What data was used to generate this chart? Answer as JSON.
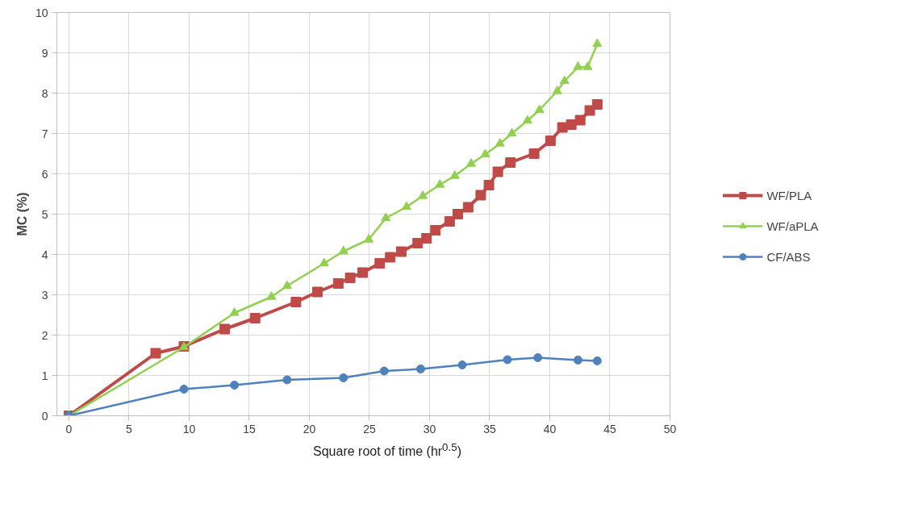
{
  "chart_data": {
    "type": "line",
    "xlabel": "Square root of time (hr$^{0.5}$)",
    "ylabel": "MC (%)",
    "xlim": [
      -1,
      50
    ],
    "xticks": [
      0,
      5,
      10,
      15,
      20,
      25,
      30,
      35,
      40,
      45,
      50
    ],
    "ylim": [
      0,
      10
    ],
    "yticks": [
      0,
      1,
      2,
      3,
      4,
      5,
      6,
      7,
      8,
      9,
      10
    ],
    "grid": true,
    "legend": "right",
    "series": [
      {
        "name": "WF/PLA",
        "color": "#be4b48",
        "marker": "square",
        "x": [
          0,
          7.22,
          9.57,
          12.96,
          15.49,
          18.89,
          20.68,
          22.41,
          23.4,
          24.44,
          25.86,
          26.73,
          27.65,
          29.01,
          29.75,
          30.49,
          31.67,
          32.35,
          33.21,
          34.26,
          34.94,
          35.68,
          36.73,
          38.7,
          40.06,
          41.05,
          41.79,
          42.53,
          43.33,
          43.95
        ],
        "values": [
          0,
          1.55,
          1.72,
          2.15,
          2.42,
          2.82,
          3.07,
          3.28,
          3.42,
          3.55,
          3.78,
          3.93,
          4.07,
          4.28,
          4.4,
          4.6,
          4.82,
          5.0,
          5.17,
          5.47,
          5.72,
          6.05,
          6.28,
          6.5,
          6.82,
          7.15,
          7.22,
          7.33,
          7.57,
          7.72
        ]
      },
      {
        "name": "WF/aPLA",
        "color": "#92d050",
        "marker": "triangle",
        "x": [
          0,
          9.57,
          13.77,
          16.85,
          18.15,
          21.23,
          22.84,
          24.94,
          26.36,
          28.09,
          29.44,
          30.86,
          32.1,
          33.46,
          34.63,
          35.86,
          36.85,
          38.15,
          39.14,
          40.62,
          41.23,
          42.35,
          43.15,
          43.95
        ],
        "values": [
          0,
          1.7,
          2.55,
          2.95,
          3.22,
          3.78,
          4.08,
          4.37,
          4.9,
          5.18,
          5.45,
          5.73,
          5.95,
          6.25,
          6.48,
          6.75,
          7.0,
          7.32,
          7.58,
          8.05,
          8.3,
          8.65,
          8.65,
          9.22
        ]
      },
      {
        "name": "CF/ABS",
        "color": "#4f81bd",
        "marker": "circle",
        "x": [
          0,
          9.57,
          13.77,
          18.15,
          22.84,
          26.23,
          29.26,
          32.72,
          36.48,
          39.01,
          42.35,
          43.95
        ],
        "values": [
          0,
          0.66,
          0.76,
          0.89,
          0.94,
          1.11,
          1.16,
          1.26,
          1.39,
          1.44,
          1.38,
          1.36
        ]
      }
    ]
  }
}
